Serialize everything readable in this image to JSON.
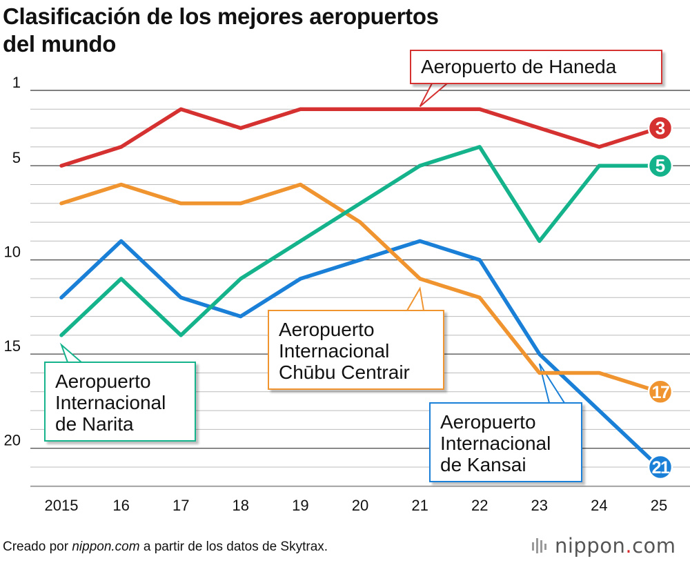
{
  "title_lines": [
    "Clasificación de los mejores aeropuertos",
    "del mundo"
  ],
  "credit": {
    "prefix": "Creado por ",
    "site": "nippon.com",
    "suffix": " a partir de los datos de Skytrax."
  },
  "logo": {
    "name": "nippon",
    "dot": ".",
    "tld": "com"
  },
  "colors": {
    "haneda": "#d63131",
    "narita": "#14b38c",
    "chubu": "#f09430",
    "kansai": "#1a7fd6",
    "grid_major": "#555555",
    "grid_minor": "#bbbbbb"
  },
  "callouts": {
    "haneda": [
      "Aeropuerto de Haneda"
    ],
    "narita": [
      "Aeropuerto",
      "Internacional",
      "de Narita"
    ],
    "chubu": [
      "Aeropuerto",
      "Internacional",
      "Chūbu Centrair"
    ],
    "kansai": [
      "Aeropuerto",
      "Internacional",
      "de Kansai"
    ]
  },
  "chart_data": {
    "type": "line",
    "title": "Clasificación de los mejores aeropuertos del mundo",
    "xlabel": "",
    "ylabel": "",
    "x": [
      "2015",
      "16",
      "17",
      "18",
      "19",
      "20",
      "21",
      "22",
      "23",
      "24",
      "25"
    ],
    "ylim": [
      1,
      22
    ],
    "y_inverted": true,
    "y_ticks": [
      1,
      5,
      10,
      15,
      20
    ],
    "series": [
      {
        "key": "haneda",
        "name": "Aeropuerto de Haneda",
        "color": "#d63131",
        "values": [
          5,
          4,
          2,
          3,
          2,
          2,
          2,
          2,
          3,
          4,
          3
        ],
        "end_label": "3"
      },
      {
        "key": "narita",
        "name": "Aeropuerto Internacional de Narita",
        "color": "#14b38c",
        "values": [
          14,
          11,
          14,
          11,
          9,
          7,
          5,
          4,
          9,
          5,
          5
        ],
        "end_label": "5"
      },
      {
        "key": "chubu",
        "name": "Aeropuerto Internacional Chūbu Centrair",
        "color": "#f09430",
        "values": [
          7,
          6,
          7,
          7,
          6,
          8,
          11,
          12,
          16,
          16,
          17
        ],
        "end_label": "17"
      },
      {
        "key": "kansai",
        "name": "Aeropuerto Internacional de Kansai",
        "color": "#1a7fd6",
        "values": [
          12,
          9,
          12,
          13,
          11,
          10,
          9,
          10,
          15,
          18,
          21
        ],
        "end_label": "21"
      }
    ]
  }
}
